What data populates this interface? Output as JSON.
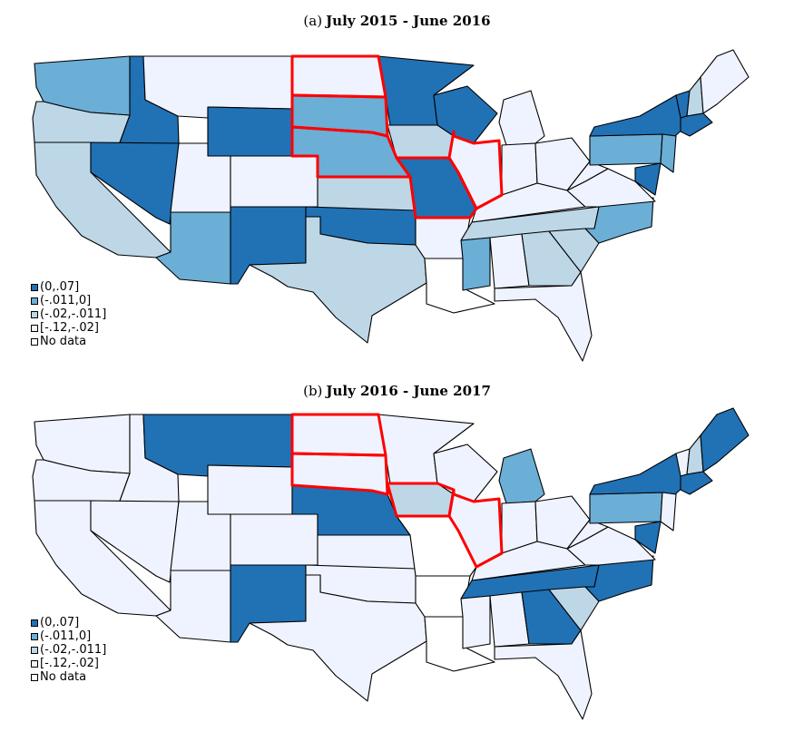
{
  "colors": {
    "c0": "#2171b5",
    "c1": "#6baed6",
    "c2": "#bdd7e7",
    "c3": "#eff3ff",
    "nodata": "#ffffff",
    "highlight": "#ff0000",
    "border": "#000000"
  },
  "legend": [
    {
      "label": "(0,.07]",
      "color": "#2171b5"
    },
    {
      "label": "(-.011,0]",
      "color": "#6baed6"
    },
    {
      "label": "(-.02,-.011]",
      "color": "#bdd7e7"
    },
    {
      "label": "[-.12,-.02]",
      "color": "#eff3ff"
    },
    {
      "label": "No data",
      "color": "#ffffff"
    }
  ],
  "panels": [
    {
      "label": "(a)",
      "title": "July 2015 - June 2016",
      "highlighted_states": [
        "ND",
        "SD",
        "NE",
        "MO",
        "IL"
      ],
      "states": {
        "WA": "c1",
        "OR": "c2",
        "CA": "c2",
        "ID": "c0",
        "NV": "c0",
        "AZ": "c1",
        "MT": "c3",
        "WY": "c0",
        "UT": "c3",
        "CO": "c3",
        "NM": "c0",
        "ND": "c3",
        "SD": "c1",
        "NE": "c1",
        "KS": "c2",
        "OK": "c0",
        "TX": "c2",
        "MN": "c0",
        "IA": "c2",
        "MO": "c0",
        "AR": "c3",
        "LA": "nodata",
        "WI": "c0",
        "IL": "c3",
        "MI": "c3",
        "IN": "c3",
        "OH": "c3",
        "KY": "c3",
        "TN": "c2",
        "MS": "c1",
        "AL": "c3",
        "GA": "c2",
        "FL": "c3",
        "SC": "c2",
        "NC": "c1",
        "VA": "c3",
        "WV": "c3",
        "PA": "c1",
        "NY": "c0",
        "VT": "c0",
        "NH": "c2",
        "ME": "c3",
        "MA": "c0",
        "NJ": "c1",
        "MD": "c0"
      }
    },
    {
      "label": "(b)",
      "title": "July 2016 - June 2017",
      "highlighted_states": [
        "ND",
        "SD",
        "IA",
        "IL"
      ],
      "states": {
        "WA": "c3",
        "OR": "c3",
        "CA": "c3",
        "ID": "c3",
        "NV": "c3",
        "AZ": "c3",
        "MT": "c0",
        "WY": "c3",
        "UT": "c3",
        "CO": "c3",
        "NM": "c0",
        "ND": "c3",
        "SD": "c3",
        "NE": "c0",
        "KS": "c3",
        "OK": "c3",
        "TX": "c3",
        "MN": "c3",
        "IA": "c2",
        "MO": "nodata",
        "AR": "nodata",
        "LA": "nodata",
        "WI": "c3",
        "IL": "c3",
        "MI": "c1",
        "IN": "c3",
        "OH": "c3",
        "KY": "c3",
        "TN": "c0",
        "MS": "c3",
        "AL": "c3",
        "GA": "c0",
        "FL": "c3",
        "SC": "c2",
        "NC": "c0",
        "VA": "c3",
        "WV": "c3",
        "PA": "c1",
        "NY": "c0",
        "VT": "c3",
        "NH": "c2",
        "ME": "c0",
        "MA": "c0",
        "NJ": "c3",
        "MD": "c0"
      }
    }
  ]
}
